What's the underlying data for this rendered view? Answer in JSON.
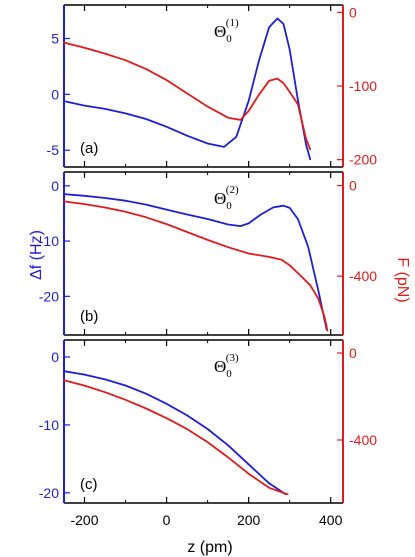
{
  "chart_data": {
    "type": "line",
    "xlabel": "z (pm)",
    "xlim": [
      -250,
      430
    ],
    "xticks": [
      -200,
      0,
      200,
      400
    ],
    "ylabel_left": "Δf (Hz)",
    "ylabel_right": "F (pN)",
    "colors": {
      "df": "#1f1fd6",
      "force": "#e01b1b"
    },
    "panels": [
      {
        "label": "(a)",
        "theta": "Θ",
        "theta_sub": "0",
        "theta_sup": "(1)",
        "left_ylim": [
          -6.5,
          8
        ],
        "left_ticks": [
          -5,
          0,
          5
        ],
        "right_ylim": [
          -210,
          10
        ],
        "right_ticks": [
          0,
          -100,
          -200
        ],
        "series": [
          {
            "axis": "left",
            "color": "#1f1fd6",
            "x": [
              -250,
              -200,
              -150,
              -100,
              -50,
              0,
              50,
              100,
              140,
              170,
              200,
              225,
              250,
              270,
              285,
              300,
              320,
              340,
              350
            ],
            "y": [
              -0.6,
              -1.0,
              -1.3,
              -1.7,
              -2.2,
              -2.9,
              -3.7,
              -4.4,
              -4.7,
              -3.8,
              -0.6,
              3.0,
              6.0,
              6.8,
              6.3,
              4.0,
              -0.5,
              -4.5,
              -5.8
            ]
          },
          {
            "axis": "right",
            "color": "#e01b1b",
            "x": [
              -250,
              -200,
              -150,
              -100,
              -50,
              0,
              50,
              100,
              150,
              180,
              200,
              225,
              250,
              270,
              285,
              300,
              320,
              340,
              350
            ],
            "y": [
              -41,
              -48,
              -56,
              -65,
              -77,
              -92,
              -110,
              -128,
              -143,
              -146,
              -134,
              -112,
              -93,
              -90,
              -96,
              -108,
              -125,
              -172,
              -186
            ]
          }
        ]
      },
      {
        "label": "(b)",
        "theta": "Θ",
        "theta_sub": "0",
        "theta_sup": "(2)",
        "left_ylim": [
          -27,
          2.5
        ],
        "left_ticks": [
          0,
          -10,
          -20
        ],
        "right_ylim": [
          -660,
          60
        ],
        "right_ticks": [
          0,
          -400
        ],
        "series": [
          {
            "axis": "left",
            "color": "#1f1fd6",
            "x": [
              -250,
              -200,
              -150,
              -100,
              -50,
              0,
              50,
              100,
              150,
              180,
              200,
              230,
              260,
              285,
              300,
              320,
              345,
              370,
              390
            ],
            "y": [
              -1.5,
              -1.8,
              -2.2,
              -2.7,
              -3.4,
              -4.3,
              -5.2,
              -6.0,
              -7.0,
              -7.3,
              -6.8,
              -5.2,
              -3.9,
              -3.6,
              -4.0,
              -6.0,
              -11.0,
              -19.0,
              -26.0
            ]
          },
          {
            "axis": "right",
            "color": "#e01b1b",
            "x": [
              -250,
              -200,
              -150,
              -100,
              -50,
              0,
              50,
              100,
              150,
              200,
              250,
              280,
              300,
              325,
              350,
              370,
              385,
              392
            ],
            "y": [
              -70,
              -82,
              -97,
              -116,
              -140,
              -170,
              -205,
              -240,
              -272,
              -300,
              -315,
              -328,
              -352,
              -395,
              -440,
              -500,
              -580,
              -640
            ]
          }
        ]
      },
      {
        "label": "(c)",
        "theta": "Θ",
        "theta_sub": "0",
        "theta_sup": "(3)",
        "left_ylim": [
          -21.5,
          2.5
        ],
        "left_ticks": [
          0,
          -10,
          -20
        ],
        "right_ylim": [
          -690,
          60
        ],
        "right_ticks": [
          0,
          -400
        ],
        "series": [
          {
            "axis": "left",
            "color": "#1f1fd6",
            "x": [
              -250,
              -200,
              -150,
              -100,
              -50,
              0,
              50,
              100,
              150,
              200,
              250,
              290
            ],
            "y": [
              -2.1,
              -2.6,
              -3.3,
              -4.2,
              -5.4,
              -6.9,
              -8.6,
              -10.6,
              -13.0,
              -15.8,
              -18.6,
              -20.2
            ]
          },
          {
            "axis": "right",
            "color": "#e01b1b",
            "x": [
              -250,
              -200,
              -150,
              -100,
              -50,
              0,
              50,
              100,
              150,
              200,
              250,
              295
            ],
            "y": [
              -125,
              -150,
              -180,
              -215,
              -255,
              -300,
              -350,
              -410,
              -480,
              -555,
              -620,
              -650
            ]
          }
        ]
      }
    ]
  }
}
